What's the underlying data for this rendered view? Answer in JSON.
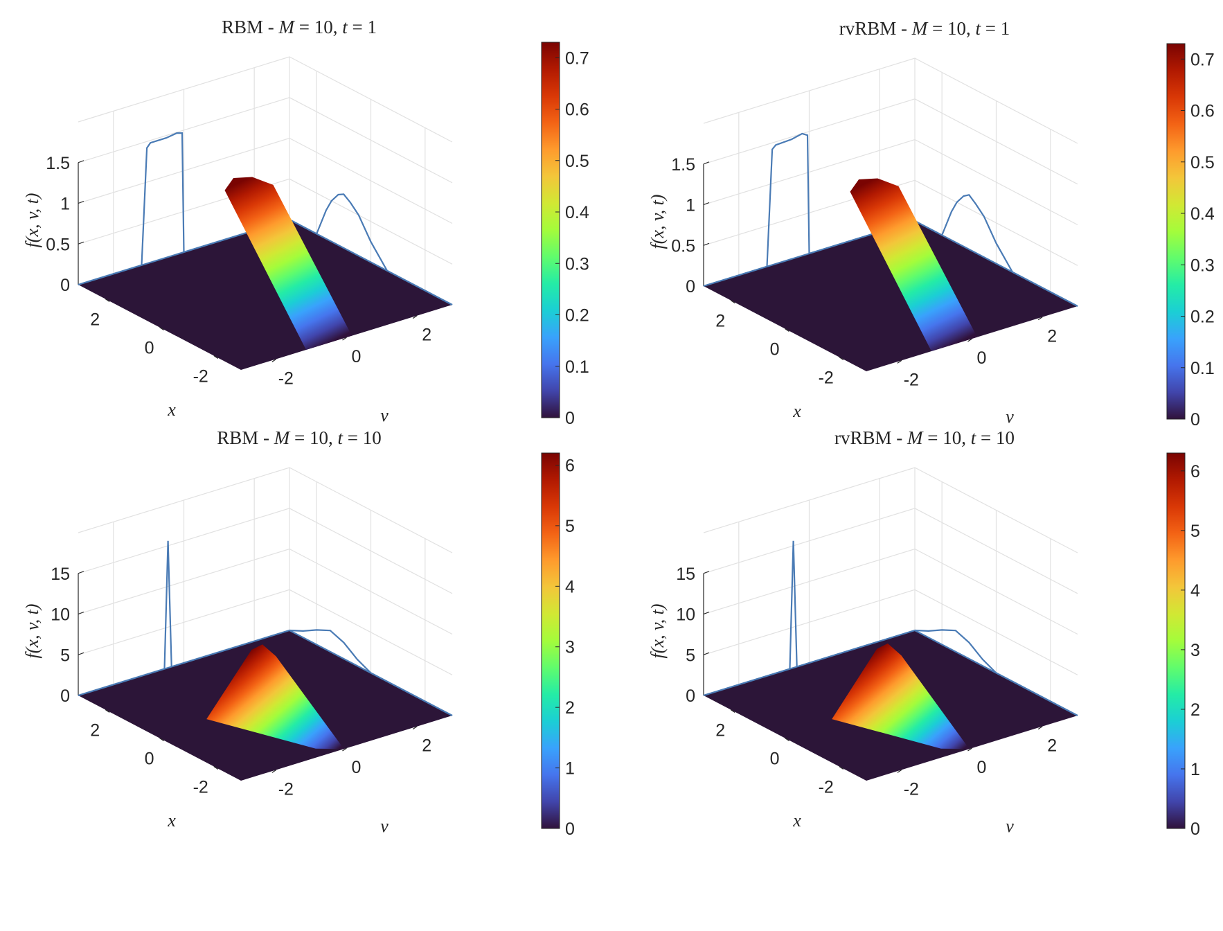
{
  "figure": {
    "colormap": [
      "#30123b",
      "#4145ab",
      "#4675ed",
      "#39a2fc",
      "#1bcfd4",
      "#24eca6",
      "#61fc6c",
      "#a4fc3b",
      "#d1e834",
      "#f3c63a",
      "#fe9b2d",
      "#f36315",
      "#d93806",
      "#b11901",
      "#7a0402"
    ],
    "floor_color": "#2c1538",
    "line_color": "#4a7bb5"
  },
  "chart_data": [
    {
      "type": "surface3d",
      "title": "RBM - M = 10, t = 1",
      "title_parts": {
        "prefix": "RBM - ",
        "m_sym": "M",
        "m_eq": " = 10, ",
        "t_sym": "t",
        "t_eq": " = 1"
      },
      "zlabel": "f(x, v, t)",
      "xlabel": "x",
      "vlabel": "v",
      "x_ticks": [
        "-2",
        "0",
        "2"
      ],
      "v_ticks": [
        "-2",
        "0",
        "2"
      ],
      "z_ticks": [
        "0",
        "0.5",
        "1",
        "1.5"
      ],
      "z_tick_values": [
        0,
        0.5,
        1,
        1.5
      ],
      "zlim": [
        0,
        2
      ],
      "colorbar_ticks": [
        "0",
        "0.1",
        "0.2",
        "0.3",
        "0.4",
        "0.5",
        "0.6",
        "0.7"
      ],
      "colorbar_values": [
        0,
        0.1,
        0.2,
        0.3,
        0.4,
        0.5,
        0.6,
        0.7
      ],
      "colorbar_lim": [
        0,
        0.73
      ],
      "surface": {
        "shape": "plateau",
        "v_center": -0.5,
        "v_halfwidth": 0.65,
        "x_range": [
          -3,
          0
        ],
        "peak": 0.73
      },
      "projection_x": {
        "v": [
          -3,
          -1.2,
          -1.05,
          -0.95,
          -0.5,
          -0.2,
          -0.05,
          0.0,
          0.1,
          3
        ],
        "z": [
          0,
          0,
          1.42,
          1.47,
          1.47,
          1.49,
          1.47,
          0.0,
          0,
          0
        ]
      },
      "projection_v": {
        "x": [
          -3,
          -0.6,
          0.0,
          0.45,
          0.75,
          1.0,
          1.2,
          1.45,
          1.65,
          2.0,
          3
        ],
        "z": [
          0,
          0,
          0.25,
          0.5,
          0.6,
          0.66,
          0.62,
          0.5,
          0.35,
          0.0,
          0
        ]
      }
    },
    {
      "type": "surface3d",
      "title": "rvRBM - M = 10, t = 1",
      "title_parts": {
        "prefix": "rvRBM - ",
        "m_sym": "M",
        "m_eq": " = 10, ",
        "t_sym": "t",
        "t_eq": " = 1"
      },
      "zlabel": "f(x, v, t)",
      "xlabel": "x",
      "vlabel": "v",
      "x_ticks": [
        "-2",
        "0",
        "2"
      ],
      "v_ticks": [
        "-2",
        "0",
        "2"
      ],
      "z_ticks": [
        "0",
        "0.5",
        "1",
        "1.5"
      ],
      "z_tick_values": [
        0,
        0.5,
        1,
        1.5
      ],
      "zlim": [
        0,
        2
      ],
      "colorbar_ticks": [
        "0",
        "0.1",
        "0.2",
        "0.3",
        "0.4",
        "0.5",
        "0.6",
        "0.7"
      ],
      "colorbar_values": [
        0,
        0.1,
        0.2,
        0.3,
        0.4,
        0.5,
        0.6,
        0.7
      ],
      "colorbar_lim": [
        0,
        0.73
      ],
      "surface": {
        "shape": "plateau",
        "v_center": -0.5,
        "v_halfwidth": 0.65,
        "x_range": [
          -3,
          0
        ],
        "peak": 0.73
      },
      "projection_x": {
        "v": [
          -3,
          -1.2,
          -1.05,
          -0.95,
          -0.5,
          -0.2,
          -0.05,
          0.0,
          0.1,
          3
        ],
        "z": [
          0,
          0,
          1.42,
          1.46,
          1.47,
          1.5,
          1.46,
          0.0,
          0,
          0
        ]
      },
      "projection_v": {
        "x": [
          -3,
          -0.6,
          0.0,
          0.45,
          0.75,
          1.0,
          1.2,
          1.45,
          1.65,
          2.0,
          3
        ],
        "z": [
          0,
          0,
          0.25,
          0.5,
          0.6,
          0.67,
          0.62,
          0.5,
          0.35,
          0.0,
          0
        ]
      }
    },
    {
      "type": "surface3d",
      "title": "RBM - M = 10, t = 10",
      "title_parts": {
        "prefix": "RBM - ",
        "m_sym": "M",
        "m_eq": " = 10, ",
        "t_sym": "t",
        "t_eq": " = 10"
      },
      "zlabel": "f(x, v, t)",
      "xlabel": "x",
      "vlabel": "v",
      "x_ticks": [
        "-2",
        "0",
        "2"
      ],
      "v_ticks": [
        "-2",
        "0",
        "2"
      ],
      "z_ticks": [
        "0",
        "5",
        "10",
        "15"
      ],
      "z_tick_values": [
        0,
        5,
        10,
        15
      ],
      "zlim": [
        0,
        20
      ],
      "colorbar_ticks": [
        "0",
        "1",
        "2",
        "3",
        "4",
        "5",
        "6"
      ],
      "colorbar_values": [
        0,
        1,
        2,
        3,
        4,
        5,
        6
      ],
      "colorbar_lim": [
        0,
        6.2
      ],
      "surface": {
        "shape": "wedge",
        "v_center": -0.3,
        "v_halfwidth": 0.9,
        "x_range": [
          -3,
          0
        ],
        "peak": 6.2
      },
      "projection_x": {
        "v": [
          -3,
          -0.65,
          -0.55,
          -0.45,
          -0.35,
          3
        ],
        "z": [
          0,
          0,
          0.0,
          15.6,
          0.0,
          0
        ]
      },
      "projection_v": {
        "x": [
          -3,
          0.0,
          0.5,
          1.0,
          1.5,
          2.0,
          2.5,
          3
        ],
        "z": [
          0,
          0,
          0.8,
          2.0,
          2.6,
          1.8,
          0.8,
          0
        ]
      }
    },
    {
      "type": "surface3d",
      "title": "rvRBM - M = 10, t = 10",
      "title_parts": {
        "prefix": "rvRBM - ",
        "m_sym": "M",
        "m_eq": " = 10, ",
        "t_sym": "t",
        "t_eq": " = 10"
      },
      "zlabel": "f(x, v, t)",
      "xlabel": "x",
      "vlabel": "v",
      "x_ticks": [
        "-2",
        "0",
        "2"
      ],
      "v_ticks": [
        "-2",
        "0",
        "2"
      ],
      "z_ticks": [
        "0",
        "5",
        "10",
        "15"
      ],
      "z_tick_values": [
        0,
        5,
        10,
        15
      ],
      "zlim": [
        0,
        20
      ],
      "colorbar_ticks": [
        "0",
        "1",
        "2",
        "3",
        "4",
        "5",
        "6"
      ],
      "colorbar_values": [
        0,
        1,
        2,
        3,
        4,
        5,
        6
      ],
      "colorbar_lim": [
        0,
        6.3
      ],
      "surface": {
        "shape": "wedge",
        "v_center": -0.3,
        "v_halfwidth": 0.9,
        "x_range": [
          -3,
          0
        ],
        "peak": 6.3
      },
      "projection_x": {
        "v": [
          -3,
          -0.65,
          -0.55,
          -0.45,
          -0.35,
          3
        ],
        "z": [
          0,
          0,
          0.0,
          15.6,
          0.0,
          0
        ]
      },
      "projection_v": {
        "x": [
          -3,
          0.0,
          0.5,
          1.0,
          1.5,
          2.0,
          2.5,
          3
        ],
        "z": [
          0,
          0,
          0.8,
          2.0,
          2.6,
          1.8,
          0.8,
          0
        ]
      }
    }
  ]
}
